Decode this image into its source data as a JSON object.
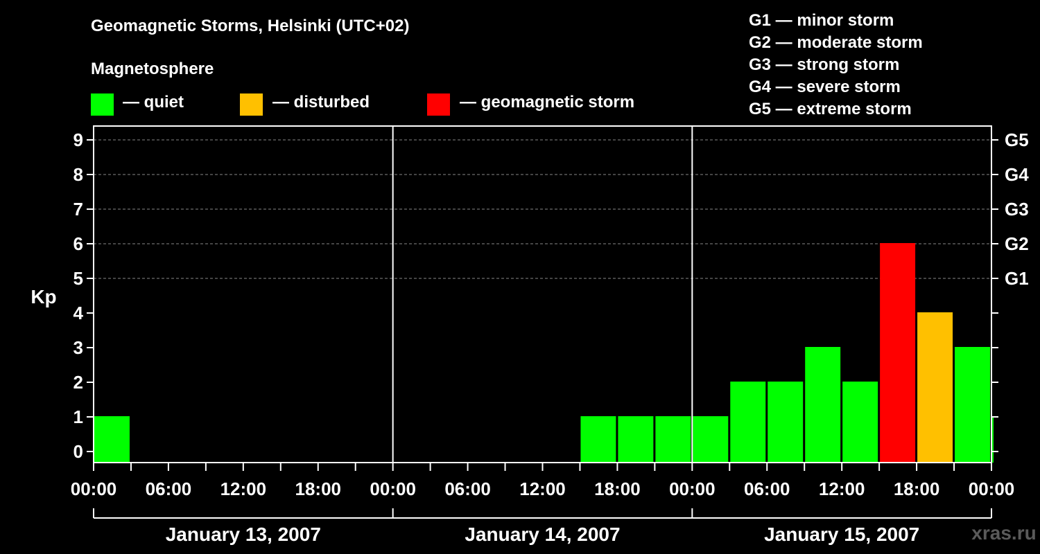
{
  "title": "Geomagnetic Storms, Helsinki (UTC+02)",
  "subtitle": "Magnetosphere",
  "legend": [
    {
      "label": "— quiet",
      "color": "#00ff00"
    },
    {
      "label": "— disturbed",
      "color": "#ffc000"
    },
    {
      "label": "— geomagnetic storm",
      "color": "#ff0000"
    }
  ],
  "storm_scale": [
    "G1 — minor storm",
    "G2 — moderate storm",
    "G3 — strong storm",
    "G4 — severe storm",
    "G5 — extreme storm"
  ],
  "watermark": "xras.ru",
  "chart_data": {
    "type": "bar",
    "ylabel": "Kp",
    "ylim": [
      0,
      9
    ],
    "yticks": [
      0,
      1,
      2,
      3,
      4,
      5,
      6,
      7,
      8,
      9
    ],
    "y2_labels": [
      {
        "kp": 5,
        "label": "G1"
      },
      {
        "kp": 6,
        "label": "G2"
      },
      {
        "kp": 7,
        "label": "G3"
      },
      {
        "kp": 8,
        "label": "G4"
      },
      {
        "kp": 9,
        "label": "G5"
      }
    ],
    "grid": "horizontal dashed at Kp 5–9",
    "days": [
      "January 13, 2007",
      "January 14, 2007",
      "January 15, 2007"
    ],
    "xtick_labels": [
      "00:00",
      "06:00",
      "12:00",
      "18:00",
      "00:00",
      "06:00",
      "12:00",
      "18:00",
      "00:00",
      "06:00",
      "12:00",
      "18:00",
      "00:00"
    ],
    "bars": [
      {
        "start": "2007-01-13 00:00",
        "end": "2007-01-13 03:00",
        "kp": 1,
        "status": "quiet"
      },
      {
        "start": "2007-01-14 15:00",
        "end": "2007-01-14 18:00",
        "kp": 1,
        "status": "quiet"
      },
      {
        "start": "2007-01-14 18:00",
        "end": "2007-01-14 21:00",
        "kp": 1,
        "status": "quiet"
      },
      {
        "start": "2007-01-14 21:00",
        "end": "2007-01-15 00:00",
        "kp": 1,
        "status": "quiet"
      },
      {
        "start": "2007-01-15 00:00",
        "end": "2007-01-15 03:00",
        "kp": 1,
        "status": "quiet"
      },
      {
        "start": "2007-01-15 03:00",
        "end": "2007-01-15 06:00",
        "kp": 2,
        "status": "quiet"
      },
      {
        "start": "2007-01-15 06:00",
        "end": "2007-01-15 09:00",
        "kp": 2,
        "status": "quiet"
      },
      {
        "start": "2007-01-15 09:00",
        "end": "2007-01-15 12:00",
        "kp": 3,
        "status": "quiet"
      },
      {
        "start": "2007-01-15 12:00",
        "end": "2007-01-15 15:00",
        "kp": 2,
        "status": "quiet"
      },
      {
        "start": "2007-01-15 15:00",
        "end": "2007-01-15 18:00",
        "kp": 6,
        "status": "geomagnetic storm"
      },
      {
        "start": "2007-01-15 18:00",
        "end": "2007-01-15 21:00",
        "kp": 4,
        "status": "disturbed"
      },
      {
        "start": "2007-01-15 21:00",
        "end": "2007-01-16 00:00",
        "kp": 3,
        "status": "quiet"
      },
      {
        "start": "2007-01-16 00:00",
        "end": "2007-01-16 00:15",
        "kp": 1,
        "status": "quiet"
      }
    ],
    "status_colors": {
      "quiet": "#00ff00",
      "disturbed": "#ffc000",
      "geomagnetic storm": "#ff0000"
    }
  }
}
